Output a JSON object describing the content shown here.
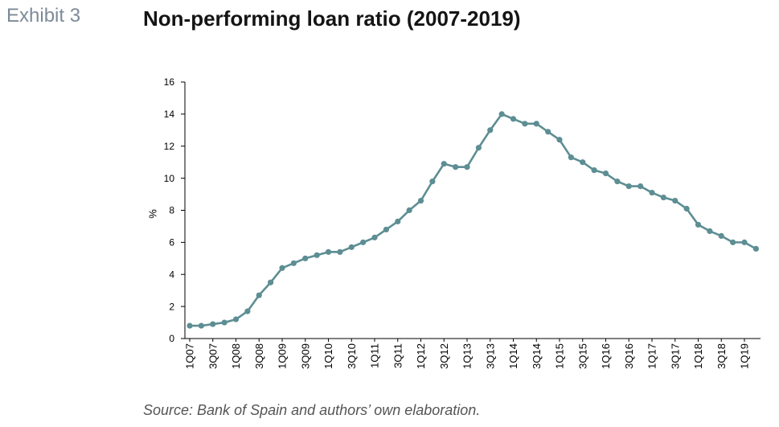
{
  "exhibit_label": "Exhibit 3",
  "source": "Source: Bank of Spain and authors’ own elaboration.",
  "colors": {
    "exhibit_label": "#7d8a98",
    "title": "#141414",
    "axis": "#000000",
    "tick_text": "#000000",
    "series": "#5d8e93",
    "source": "#555555"
  },
  "chart_data": {
    "type": "line",
    "title": "Non-performing loan ratio (2007-2019)",
    "ylabel": "%",
    "ylim": [
      0,
      16
    ],
    "y_ticks": [
      0,
      2,
      4,
      6,
      8,
      10,
      12,
      14,
      16
    ],
    "x_tick_labels": [
      "1Q07",
      "3Q07",
      "1Q08",
      "3Q08",
      "1Q09",
      "3Q09",
      "1Q10",
      "3Q10",
      "1Q11",
      "3Q11",
      "1Q12",
      "3Q12",
      "1Q13",
      "3Q13",
      "1Q14",
      "3Q14",
      "1Q15",
      "3Q15",
      "1Q16",
      "3Q16",
      "1Q17",
      "3Q17",
      "1Q18",
      "3Q18",
      "1Q19"
    ],
    "grid": false,
    "legend": false,
    "markers": true,
    "series": [
      {
        "values": [
          0.8,
          0.8,
          0.9,
          1.0,
          1.2,
          1.7,
          2.7,
          3.5,
          4.4,
          4.7,
          5.0,
          5.2,
          5.4,
          5.4,
          5.7,
          6.0,
          6.3,
          6.8,
          7.3,
          8.0,
          8.6,
          9.8,
          10.9,
          10.7,
          10.7,
          11.9,
          13.0,
          14.0,
          13.7,
          13.4,
          13.4,
          12.9,
          12.4,
          11.3,
          11.0,
          10.5,
          10.3,
          9.8,
          9.5,
          9.5,
          9.1,
          8.8,
          8.6,
          8.1,
          7.1,
          6.7,
          6.4,
          6.0,
          6.0,
          5.6
        ]
      }
    ]
  }
}
